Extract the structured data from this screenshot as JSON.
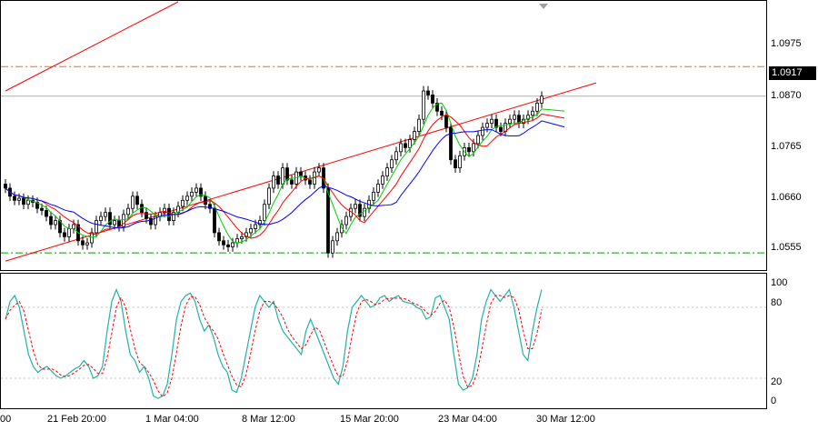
{
  "chart_data": [
    {
      "type": "candlestick",
      "symbol_hint": "",
      "y_ticks": [
        "1.0975",
        "1.0870",
        "1.0765",
        "1.0660",
        "1.0555"
      ],
      "ylim": [
        1.049,
        1.115
      ],
      "current_price": "1.0917",
      "x_tick_labels": [
        "00",
        "21 Feb 20:00",
        "1 Mar 04:00",
        "8 Mar 12:00",
        "15 Mar 20:00",
        "23 Mar 04:00",
        "30 Mar 12:00"
      ],
      "series": [
        {
          "name": "",
          "kind": "close",
          "values": [
            1.069,
            1.067,
            1.066,
            1.0665,
            1.065,
            1.066,
            1.0655,
            1.064,
            1.0635,
            1.062,
            1.06,
            1.061,
            1.058,
            1.057,
            1.059,
            1.06,
            1.056,
            1.055,
            1.0555,
            1.058,
            1.061,
            1.062,
            1.063,
            1.06,
            1.061,
            1.0595,
            1.0625,
            1.064,
            1.067,
            1.065,
            1.063,
            1.0615,
            1.06,
            1.062,
            1.063,
            1.064,
            1.061,
            1.063,
            1.0645,
            1.066,
            1.067,
            1.068,
            1.069,
            1.067,
            1.065,
            1.064,
            1.058,
            1.056,
            1.055,
            1.0545,
            1.0555,
            1.0565,
            1.057,
            1.058,
            1.059,
            1.06,
            1.061,
            1.065,
            1.069,
            1.072,
            1.07,
            1.074,
            1.071,
            1.07,
            1.073,
            1.072,
            1.071,
            1.07,
            1.073,
            1.074,
            1.069,
            1.053,
            1.056,
            1.058,
            1.06,
            1.062,
            1.064,
            1.065,
            1.062,
            1.064,
            1.066,
            1.068,
            1.07,
            1.072,
            1.074,
            1.076,
            1.078,
            1.08,
            1.079,
            1.081,
            1.083,
            1.086,
            1.093,
            1.092,
            1.09,
            1.088,
            1.087,
            1.084,
            1.076,
            1.074,
            1.077,
            1.079,
            1.078,
            1.08,
            1.082,
            1.084,
            1.085,
            1.086,
            1.084,
            1.083,
            1.085,
            1.086,
            1.087,
            1.085,
            1.086,
            1.087,
            1.088,
            1.09,
            1.0917
          ]
        },
        {
          "name": "",
          "kind": "ma_fast",
          "color": "#00cc00"
        },
        {
          "name": "",
          "kind": "ma_mid",
          "color": "#ff0000"
        },
        {
          "name": "",
          "kind": "ma_slow",
          "color": "#0000ff"
        }
      ],
      "horizontal_levels": [
        {
          "value": 1.099,
          "style": "dash-dot",
          "color": "#ff6a00"
        },
        {
          "value": 1.0917,
          "style": "solid",
          "color": "#b0b0b0"
        },
        {
          "value": 1.053,
          "style": "dash-dot",
          "color": "#00a000"
        }
      ],
      "trendlines": [
        {
          "from": [
            0,
            1.093
          ],
          "to": [
            38,
            1.115
          ],
          "color": "#ff0000"
        },
        {
          "from": [
            0,
            1.051
          ],
          "to": [
            130,
            1.095
          ],
          "color": "#ff0000"
        }
      ]
    },
    {
      "type": "line",
      "indicator": "stochastic",
      "y_ticks": [
        "100",
        "80",
        "20",
        "0"
      ],
      "ylim": [
        0,
        100
      ],
      "levels": [
        80,
        20
      ],
      "main_color": "#20b2aa",
      "signal_color": "#ff0000",
      "main": [
        70,
        85,
        90,
        80,
        60,
        40,
        30,
        25,
        28,
        30,
        26,
        22,
        20,
        22,
        25,
        28,
        30,
        35,
        30,
        20,
        22,
        30,
        60,
        85,
        95,
        85,
        60,
        40,
        35,
        25,
        30,
        20,
        5,
        3,
        5,
        15,
        40,
        70,
        85,
        90,
        92,
        85,
        70,
        60,
        65,
        55,
        40,
        30,
        25,
        10,
        8,
        20,
        40,
        60,
        80,
        90,
        85,
        80,
        85,
        70,
        60,
        55,
        50,
        45,
        40,
        60,
        70,
        60,
        50,
        40,
        30,
        20,
        15,
        30,
        60,
        80,
        85,
        90,
        85,
        80,
        82,
        88,
        90,
        85,
        88,
        90,
        85,
        84,
        83,
        80,
        78,
        70,
        72,
        88,
        90,
        80,
        70,
        40,
        15,
        10,
        12,
        20,
        40,
        70,
        85,
        95,
        90,
        85,
        90,
        95,
        80,
        60,
        40,
        35,
        60,
        80,
        95
      ]
    }
  ]
}
